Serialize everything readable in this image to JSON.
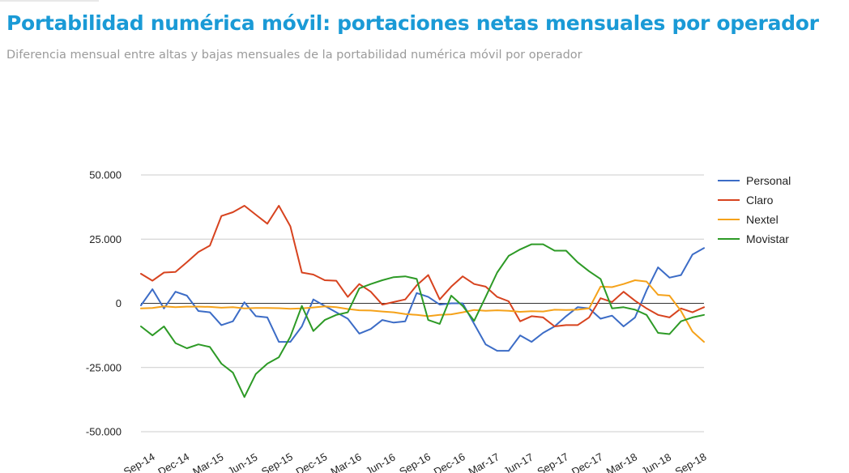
{
  "header": {
    "title": "Portabilidad numérica móvil: portaciones netas mensuales por operador",
    "subtitle": "Diferencia mensual entre altas y bajas mensuales de la portabilidad numérica móvil por operador"
  },
  "chart_data": {
    "type": "line",
    "ylim": [
      -50000,
      50000
    ],
    "yticks": [
      50000,
      25000,
      0,
      -25000,
      -50000
    ],
    "ytick_labels": [
      "50.000",
      "25.000",
      "0",
      "-25.000",
      "-50.000"
    ],
    "x": [
      "Sep-14",
      "Oct-14",
      "Nov-14",
      "Dec-14",
      "Jan-15",
      "Feb-15",
      "Mar-15",
      "Apr-15",
      "May-15",
      "Jun-15",
      "Jul-15",
      "Aug-15",
      "Sep-15",
      "Oct-15",
      "Nov-15",
      "Dec-15",
      "Jan-16",
      "Feb-16",
      "Mar-16",
      "Apr-16",
      "May-16",
      "Jun-16",
      "Jul-16",
      "Aug-16",
      "Sep-16",
      "Oct-16",
      "Nov-16",
      "Dec-16",
      "Jan-17",
      "Feb-17",
      "Mar-17",
      "Apr-17",
      "May-17",
      "Jun-17",
      "Jul-17",
      "Aug-17",
      "Sep-17",
      "Oct-17",
      "Nov-17",
      "Dec-17",
      "Jan-18",
      "Feb-18",
      "Mar-18",
      "Apr-18",
      "May-18",
      "Jun-18",
      "Jul-18",
      "Aug-18",
      "Sep-18",
      "Oct-18"
    ],
    "xtick_labels": [
      "Sep-14",
      "Dec-14",
      "Mar-15",
      "Jun-15",
      "Sep-15",
      "Dec-15",
      "Mar-16",
      "Jun-16",
      "Sep-16",
      "Dec-16",
      "Mar-17",
      "Jun-17",
      "Sep-17",
      "Dec-17",
      "Mar-18",
      "Jun-18",
      "Sep-18"
    ],
    "legend_position": "right",
    "grid": "horizontal",
    "series": [
      {
        "name": "Personal",
        "color": "#3c6cc6",
        "values": [
          -800,
          5500,
          -2000,
          4500,
          3000,
          -3000,
          -3500,
          -8500,
          -7000,
          400,
          -5000,
          -5500,
          -15000,
          -15000,
          -9000,
          1500,
          -1000,
          -3500,
          -6000,
          -11800,
          -10000,
          -6500,
          -7500,
          -7000,
          4000,
          2500,
          -500,
          0,
          0,
          -8000,
          -16000,
          -18500,
          -18500,
          -12500,
          -15000,
          -11500,
          -9000,
          -5000,
          -1500,
          -2000,
          -6000,
          -4800,
          -9000,
          -5500,
          5000,
          14000,
          10000,
          11000,
          19000,
          21500
        ]
      },
      {
        "name": "Claro",
        "color": "#d7431f",
        "values": [
          11500,
          8800,
          12000,
          12200,
          16000,
          20000,
          22500,
          34000,
          35500,
          38000,
          34500,
          31000,
          38000,
          30000,
          12000,
          11200,
          9000,
          8800,
          2500,
          7500,
          4500,
          -500,
          500,
          1500,
          7000,
          11000,
          1500,
          6500,
          10500,
          7500,
          6500,
          2500,
          800,
          -7000,
          -5000,
          -5500,
          -9000,
          -8500,
          -8500,
          -5500,
          2000,
          500,
          4500,
          1000,
          -2000,
          -4500,
          -5500,
          -2000,
          -3500,
          -1500
        ]
      },
      {
        "name": "Nextel",
        "color": "#f5a21a",
        "values": [
          -2000,
          -1800,
          -1200,
          -1500,
          -1300,
          -1300,
          -1400,
          -1700,
          -1500,
          -2000,
          -1800,
          -1800,
          -1900,
          -2100,
          -2000,
          -1600,
          -1200,
          -1500,
          -2200,
          -2700,
          -2800,
          -3200,
          -3500,
          -4200,
          -4500,
          -5000,
          -4500,
          -4300,
          -3500,
          -2600,
          -2900,
          -2700,
          -2900,
          -3300,
          -3100,
          -3200,
          -2500,
          -2600,
          -2500,
          -2000,
          6500,
          6300,
          7500,
          9000,
          8500,
          3300,
          3000,
          -3000,
          -11000,
          -15000
        ]
      },
      {
        "name": "Movistar",
        "color": "#2d9a26",
        "values": [
          -9000,
          -12500,
          -9000,
          -15500,
          -17500,
          -16000,
          -17000,
          -23500,
          -27000,
          -36500,
          -27500,
          -23500,
          -21000,
          -13000,
          -1000,
          -10800,
          -6500,
          -4500,
          -3500,
          5800,
          7500,
          9000,
          10200,
          10500,
          9500,
          -6500,
          -8000,
          3000,
          -1000,
          -6800,
          2500,
          12000,
          18500,
          21000,
          23000,
          23000,
          20500,
          20500,
          16000,
          12500,
          9500,
          -2000,
          -1500,
          -2500,
          -4500,
          -11500,
          -12000,
          -7000,
          -5500,
          -4500
        ]
      }
    ]
  }
}
